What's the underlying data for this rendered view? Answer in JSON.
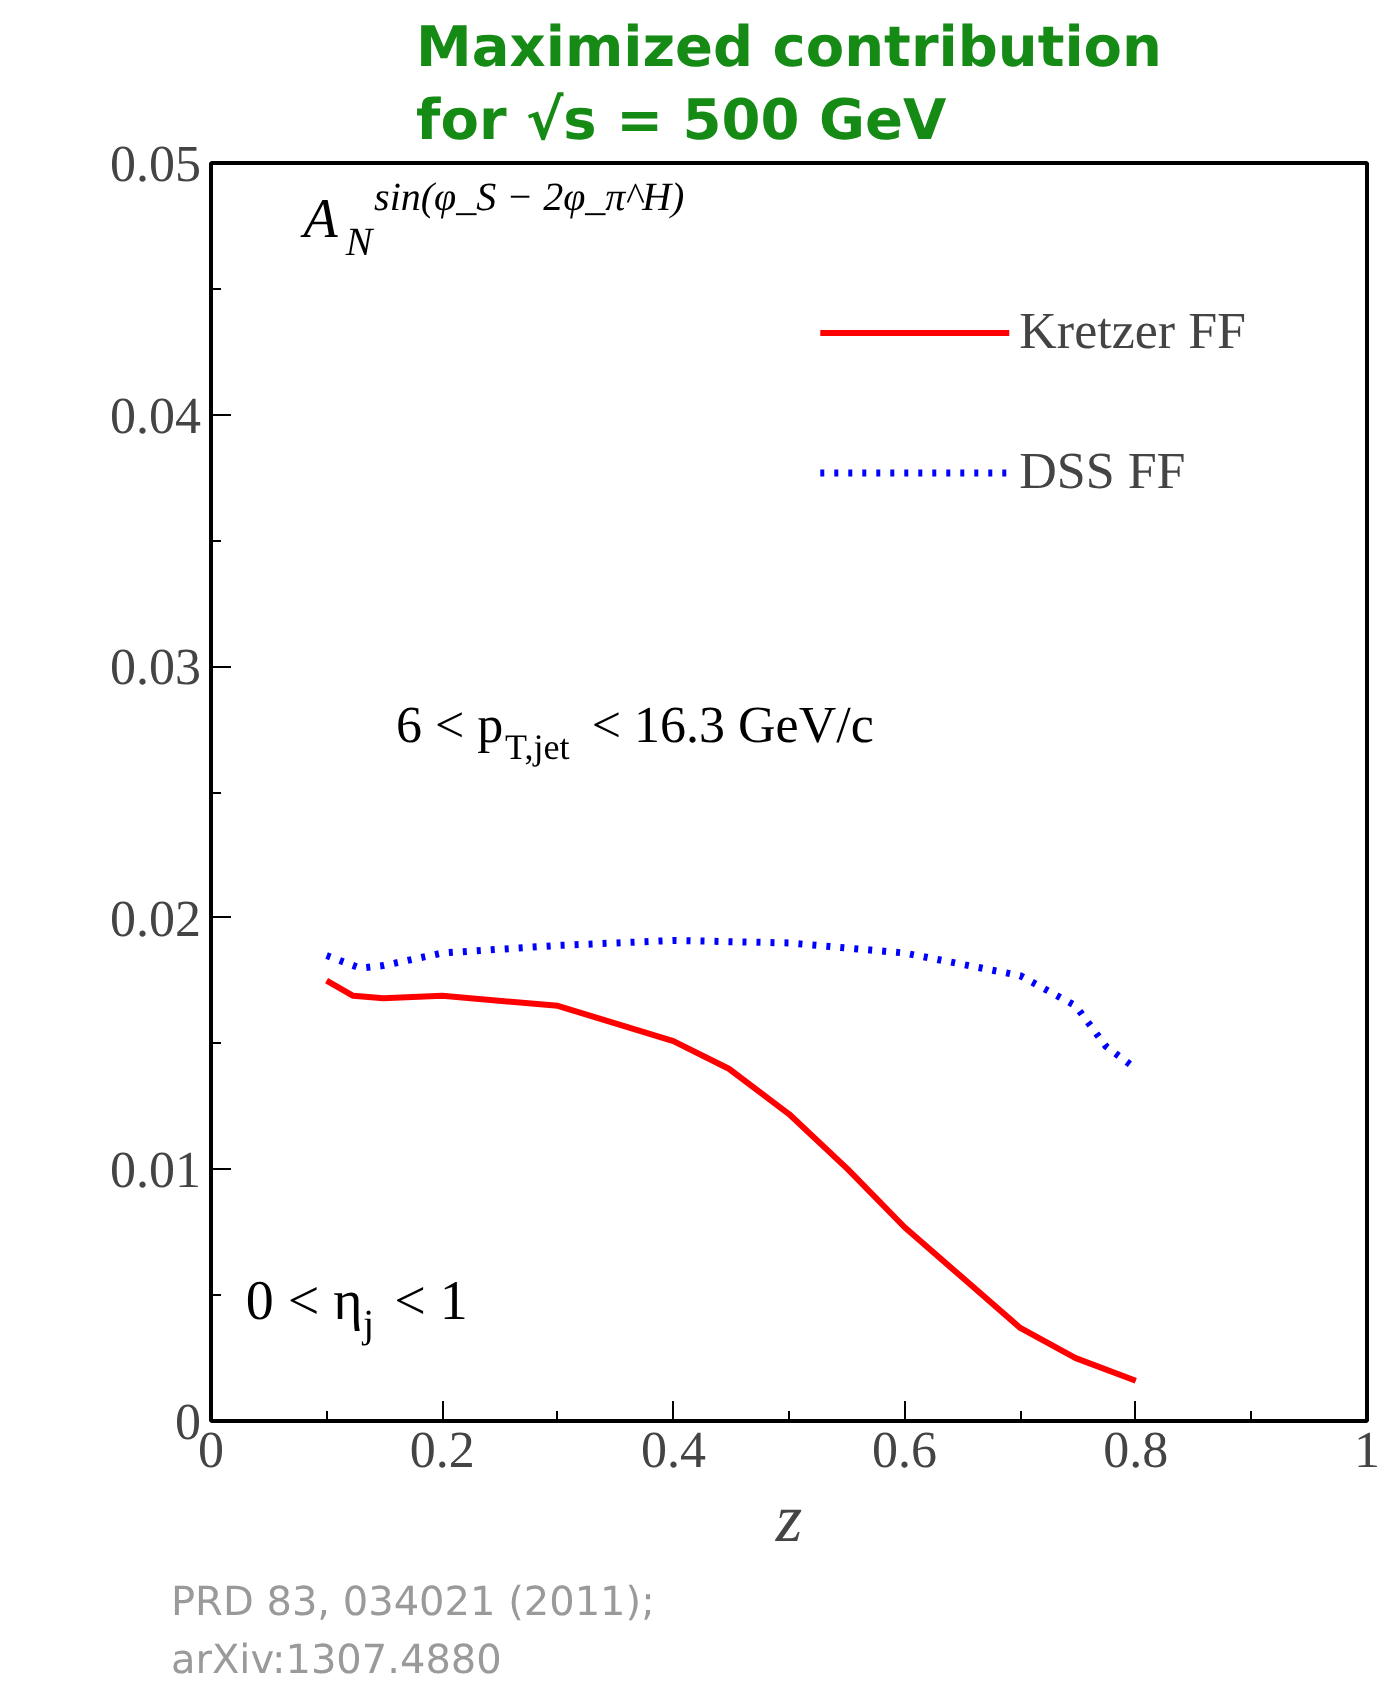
{
  "chart_data": {
    "type": "line",
    "title": "Maximized contribution\nfor √s = 500 GeV",
    "xlabel": "z",
    "annotations": [
      "A$_{N}$$^{sin(φ_S − 2φ_π^H)}$",
      "6 < p$_{T,jet}$ < 16.3 GeV/c",
      "0 < η$_{j}$ < 1",
      "PRD 83, 034021 (2011);\narXiv:1307.4880"
    ],
    "series": [
      {
        "name": "Kretzer FF",
        "color": "#ff0000",
        "line_style": "solid",
        "x": [
          0.1,
          0.123,
          0.149,
          0.2,
          0.3,
          0.4,
          0.448,
          0.5,
          0.551,
          0.6,
          0.65,
          0.7,
          0.748,
          0.8
        ],
        "values": [
          0.0175,
          0.0169,
          0.0168,
          0.0169,
          0.0165,
          0.0151,
          0.014,
          0.0122,
          0.01,
          0.0077,
          0.0057,
          0.0037,
          0.0025,
          0.0016
        ]
      },
      {
        "name": "DSS FF",
        "color": "#0000ff",
        "line_style": "dotted",
        "x": [
          0.1,
          0.129,
          0.149,
          0.2,
          0.3,
          0.4,
          0.5,
          0.6,
          0.7,
          0.748,
          0.774,
          0.8
        ],
        "values": [
          0.0185,
          0.018,
          0.0181,
          0.0186,
          0.0189,
          0.0191,
          0.019,
          0.0186,
          0.0177,
          0.0165,
          0.0149,
          0.014
        ]
      }
    ],
    "xlim": [
      0,
      1
    ],
    "ylim": [
      0,
      0.05
    ],
    "xticks": [
      0,
      0.2,
      0.4,
      0.6,
      0.8,
      1
    ],
    "yticks": [
      0,
      0.01,
      0.02,
      0.03,
      0.04,
      0.05
    ],
    "grid": false,
    "legend": "top right",
    "marker": "none"
  }
}
